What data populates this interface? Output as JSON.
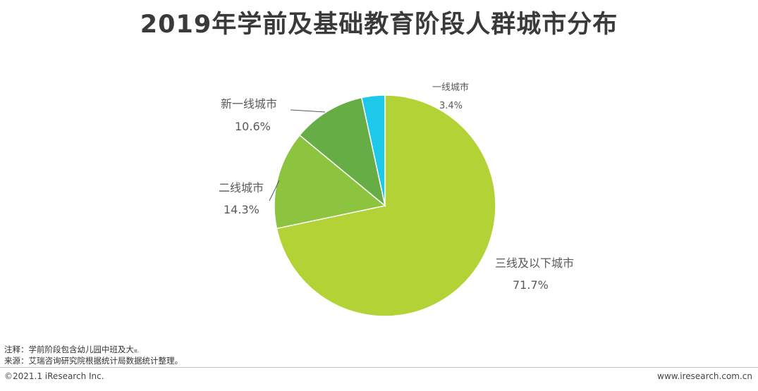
{
  "title": "2019年学前及基础教育阶段人群城市分布",
  "chart_data": {
    "type": "pie",
    "title": "2019年学前及基础教育阶段人群城市分布",
    "slices": [
      {
        "name": "一线城市",
        "value": 3.4,
        "label": "3.4%",
        "color": "#1ec8e8"
      },
      {
        "name": "三线及以下城市",
        "value": 71.7,
        "label": "71.7%",
        "color": "#b2d235"
      },
      {
        "name": "二线城市",
        "value": 14.3,
        "label": "14.3%",
        "color": "#8cc43f"
      },
      {
        "name": "新一线城市",
        "value": 10.6,
        "label": "10.6%",
        "color": "#67ad45"
      }
    ]
  },
  "notes": {
    "note": "注释：学前阶段包含幼儿园中班及大",
    "note_suffix": "班。",
    "source": "来源：艾瑞咨询研究院根据统计局数据统计整理。"
  },
  "footer": {
    "copyright": "©2021.1 iResearch Inc.",
    "website": "www.iresearch.com.cn"
  }
}
